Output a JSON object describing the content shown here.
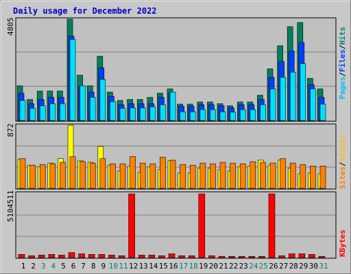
{
  "chart_data": {
    "type": "bar",
    "title": "Daily usage for December 2022",
    "days": [
      "1",
      "2",
      "3",
      "4",
      "5",
      "6",
      "7",
      "8",
      "9",
      "10",
      "11",
      "12",
      "13",
      "14",
      "15",
      "16",
      "17",
      "18",
      "19",
      "20",
      "21",
      "22",
      "23",
      "24",
      "25",
      "26",
      "27",
      "28",
      "29",
      "30",
      "31"
    ],
    "weekend_days": [
      "3",
      "4",
      "10",
      "11",
      "17",
      "18",
      "24",
      "25",
      "31"
    ],
    "panels": {
      "hits": {
        "max_label": "4805",
        "ymax": 4805,
        "series": [
          {
            "name": "Hits",
            "color": "#00805c",
            "values": [
              1650,
              1000,
              1400,
              1400,
              1400,
              4805,
              2150,
              1650,
              3050,
              1350,
              950,
              1000,
              1000,
              1100,
              1300,
              1500,
              780,
              780,
              880,
              880,
              800,
              700,
              880,
              880,
              1200,
              2450,
              3550,
              4450,
              4650,
              2000,
              1500
            ]
          },
          {
            "name": "Files",
            "color": "#0040ff",
            "values": [
              1300,
              800,
              1000,
              1100,
              1100,
              4000,
              1600,
              1350,
              2500,
              1150,
              750,
              800,
              800,
              800,
              1100,
              1300,
              680,
              680,
              750,
              750,
              700,
              600,
              750,
              750,
              1000,
              2050,
              2800,
              3300,
              3700,
              1700,
              1100
            ]
          },
          {
            "name": "Pages",
            "color": "#00e0ff",
            "values": [
              950,
              580,
              700,
              800,
              800,
              3850,
              1650,
              1100,
              1950,
              900,
              580,
              600,
              600,
              650,
              750,
              1350,
              420,
              420,
              520,
              520,
              420,
              400,
              520,
              520,
              750,
              1500,
              2050,
              2300,
              2700,
              1500,
              780
            ]
          }
        ]
      },
      "visits": {
        "max_label": "872",
        "ymax": 872,
        "series": [
          {
            "name": "Visits",
            "color": "#ffff00",
            "values": [
              400,
              320,
              300,
              350,
              410,
              872,
              380,
              360,
              580,
              320,
              240,
              310,
              220,
              300,
              260,
              380,
              210,
              210,
              280,
              280,
              260,
              240,
              300,
              310,
              390,
              320,
              390,
              280,
              200,
              210,
              200
            ]
          },
          {
            "name": "Sites",
            "color": "#ff8000",
            "values": [
              410,
              320,
              330,
              340,
              360,
              440,
              370,
              350,
              410,
              340,
              340,
              440,
              350,
              340,
              430,
              390,
              330,
              320,
              350,
              340,
              360,
              350,
              340,
              370,
              360,
              350,
              410,
              350,
              330,
              310,
              310
            ]
          }
        ]
      },
      "kbytes": {
        "max_label": "5104511",
        "ymax": 5104511,
        "series": [
          {
            "name": "KBytes",
            "color": "#ff0000",
            "values": [
              250000,
              150000,
              200000,
              250000,
              200000,
              400000,
              300000,
              250000,
              250000,
              200000,
              150000,
              5104511,
              200000,
              200000,
              150000,
              300000,
              150000,
              150000,
              5104511,
              150000,
              100000,
              100000,
              100000,
              100000,
              100000,
              5104511,
              150000,
              300000,
              300000,
              250000,
              100000
            ]
          }
        ]
      }
    },
    "right_labels": {
      "hits": [
        {
          "text": "Pages",
          "color": "#00c0ff"
        },
        {
          "text": "/",
          "color": "#000000"
        },
        {
          "text": "Files",
          "color": "#0040ff"
        },
        {
          "text": "/",
          "color": "#000000"
        },
        {
          "text": "Hits",
          "color": "#008080"
        }
      ],
      "visits": [
        {
          "text": "Sites",
          "color": "#ff8000"
        },
        {
          "text": "/",
          "color": "#000000"
        },
        {
          "text": "Visits",
          "color": "#ffc000"
        }
      ],
      "kbytes": [
        {
          "text": "KBytes",
          "color": "#ff0000"
        }
      ]
    },
    "colors": {
      "title": "#0000c0",
      "weekday": "#000000",
      "weekend": "#00805c",
      "panel_bg": "#c0c0c0",
      "outer_bg": "#c8c8c8"
    }
  }
}
